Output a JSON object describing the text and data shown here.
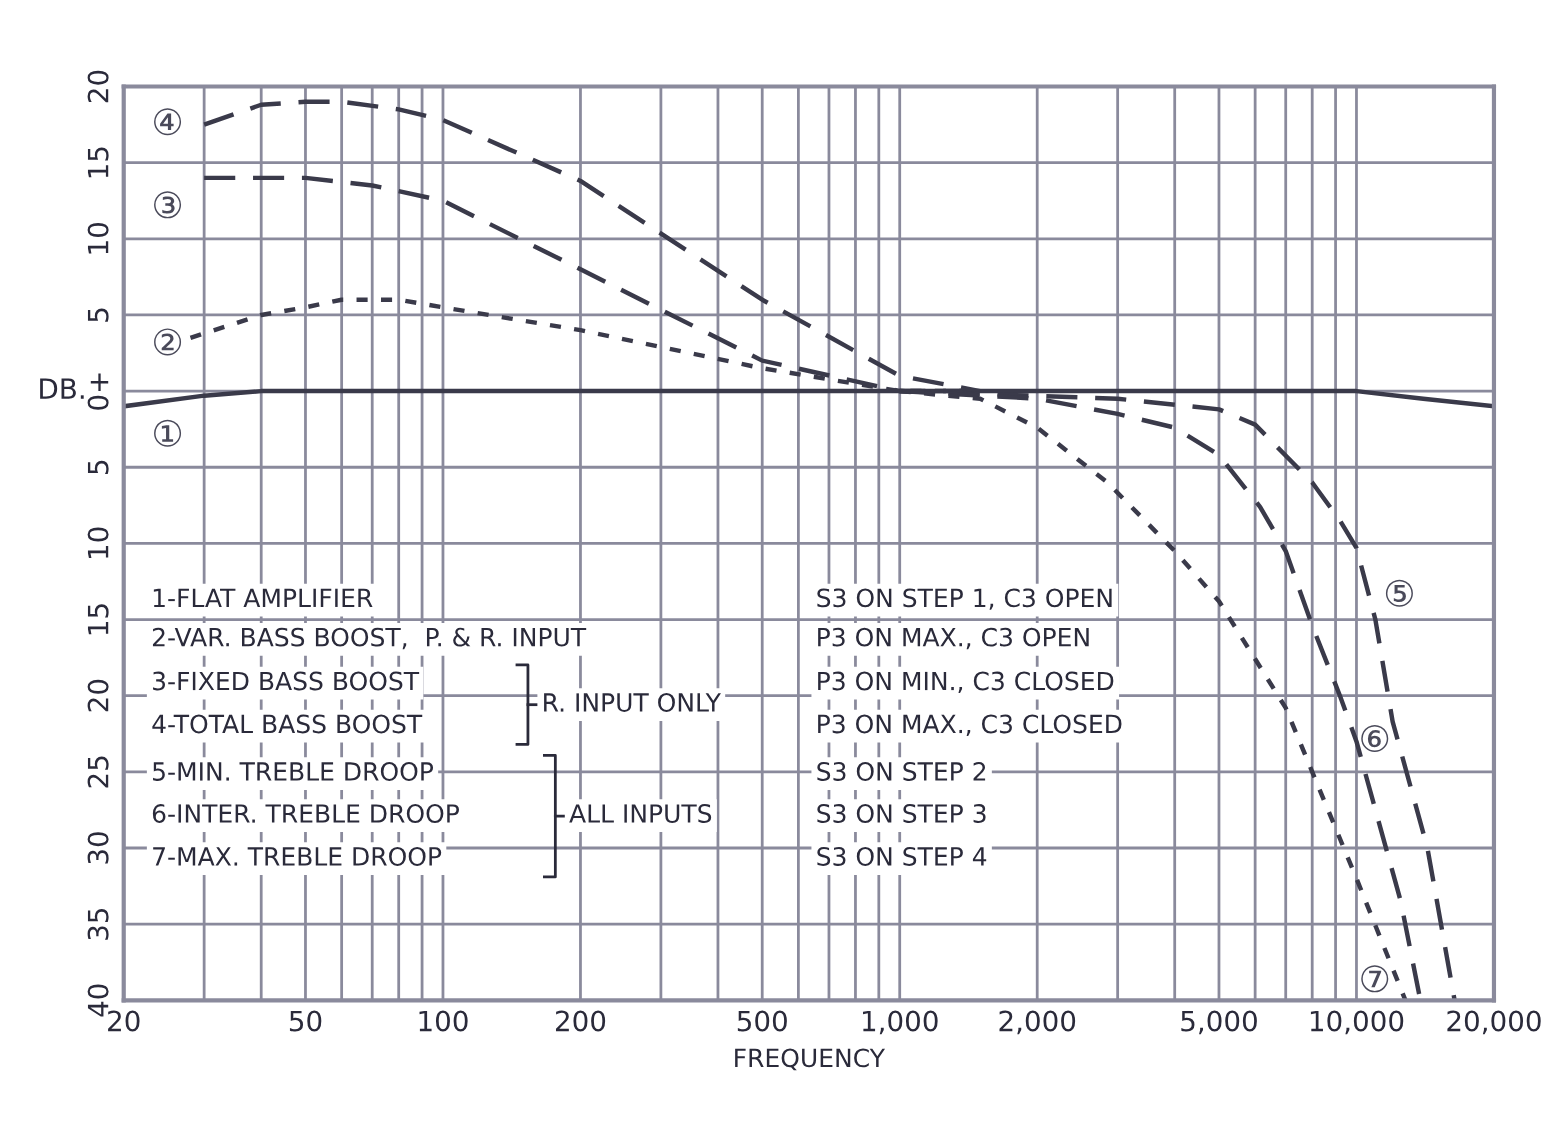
{
  "chart_data": {
    "type": "line",
    "xlabel": "FREQUENCY",
    "ylabel": "DB.",
    "log": "x",
    "grid": true,
    "marker": "none",
    "xlim": [
      20,
      20000
    ],
    "ylim": [
      -40,
      20
    ],
    "xticks": [
      20,
      {
        "value": 30,
        "label": null
      },
      {
        "value": 40,
        "label": null
      },
      50,
      {
        "value": 60,
        "label": null
      },
      {
        "value": 70,
        "label": null
      },
      {
        "value": 80,
        "label": null
      },
      {
        "value": 90,
        "label": null
      },
      100,
      200,
      {
        "value": 300,
        "label": null
      },
      {
        "value": 400,
        "label": null
      },
      500,
      {
        "value": 600,
        "label": null
      },
      {
        "value": 700,
        "label": null
      },
      {
        "value": 800,
        "label": null
      },
      {
        "value": 900,
        "label": null
      },
      {
        "value": 1000,
        "label": "1,000"
      },
      {
        "value": 2000,
        "label": "2,000"
      },
      {
        "value": 3000,
        "label": null
      },
      {
        "value": 4000,
        "label": null
      },
      {
        "value": 5000,
        "label": "5,000"
      },
      {
        "value": 6000,
        "label": null
      },
      {
        "value": 7000,
        "label": null
      },
      {
        "value": 8000,
        "label": null
      },
      {
        "value": 9000,
        "label": null
      },
      {
        "value": 10000,
        "label": "10,000"
      },
      {
        "value": 20000,
        "label": "20,000"
      }
    ],
    "yticks": [
      20,
      15,
      10,
      5,
      {
        "value": 0,
        "label": "0+"
      },
      {
        "value": -5,
        "label": "5"
      },
      {
        "value": -10,
        "label": "10"
      },
      {
        "value": -15,
        "label": "15"
      },
      {
        "value": -20,
        "label": "20"
      },
      {
        "value": -25,
        "label": "25"
      },
      {
        "value": -30,
        "label": "30"
      },
      {
        "value": -35,
        "label": "35"
      },
      {
        "value": -40,
        "label": "40"
      }
    ],
    "series": [
      {
        "color": "#3a3a4a",
        "line_style": "solid",
        "x": [
          20,
          30,
          40,
          100,
          1000,
          5000,
          10000,
          14000,
          20000
        ],
        "values": [
          -1,
          -0.3,
          0,
          0,
          0,
          0,
          0,
          -0.5,
          -1
        ]
      },
      {
        "color": "#3a3a4a",
        "line_style": "dotted",
        "x": [
          28,
          40,
          50,
          60,
          80,
          100,
          200,
          500,
          1000,
          1500
        ],
        "values": [
          3.5,
          5,
          5.5,
          6,
          6,
          5.5,
          4,
          1.5,
          0,
          0
        ]
      },
      {
        "color": "#3a3a4a",
        "line_style": "dashed",
        "x": [
          30,
          50,
          70,
          100,
          200,
          500,
          1000,
          1500
        ],
        "values": [
          14,
          14,
          13.5,
          12.5,
          8,
          2,
          0,
          0
        ]
      },
      {
        "color": "#3a3a4a",
        "line_style": "dashed",
        "x": [
          30,
          40,
          50,
          60,
          80,
          100,
          200,
          500,
          1000,
          1500
        ],
        "values": [
          17.5,
          18.8,
          19,
          19,
          18.5,
          17.8,
          13.8,
          6,
          1,
          0
        ]
      },
      {
        "color": "#3a3a4a",
        "line_style": "dashed",
        "x": [
          1000,
          3000,
          5000,
          6000,
          8000,
          9200,
          10000,
          11000,
          12000,
          14300,
          16400
        ],
        "values": [
          0,
          -0.5,
          -1.2,
          -2.2,
          -6,
          -8.5,
          -10.3,
          -15,
          -21.7,
          -30,
          -40
        ]
      },
      {
        "color": "#3a3a4a",
        "line_style": "dashed",
        "x": [
          1000,
          2000,
          3000,
          4000,
          5000,
          6150,
          7000,
          8000,
          9200,
          10000,
          12500,
          13800
        ],
        "values": [
          0,
          -0.5,
          -1.5,
          -2.4,
          -4.2,
          -7.6,
          -10.5,
          -15.4,
          -20,
          -23,
          -33.5,
          -40
        ]
      },
      {
        "color": "#3a3a4a",
        "line_style": "dotted",
        "x": [
          1000,
          1500,
          2000,
          2850,
          4000,
          5000,
          7000,
          8000,
          10000,
          12800
        ],
        "values": [
          0,
          -0.5,
          -2.4,
          -6,
          -10.5,
          -13.8,
          -20.8,
          -25,
          -32,
          -40
        ]
      }
    ],
    "annotations": [
      "①",
      "②",
      "③",
      "④",
      "⑤",
      "⑥",
      "⑦",
      "1-FLAT AMPLIFIER",
      "2-VAR. BASS BOOST,  P. & R. INPUT",
      "3-FIXED BASS BOOST",
      "4-TOTAL BASS BOOST",
      "5-MIN. TREBLE DROOP",
      "6-INTER. TREBLE DROOP",
      "7-MAX. TREBLE DROOP",
      "R. INPUT ONLY",
      "ALL INPUTS",
      "S3 ON STEP 1, C3 OPEN",
      "P3 ON MAX., C3 OPEN",
      "P3 ON MIN., C3 CLOSED",
      "P3 ON MAX., C3 CLOSED",
      "S3 ON STEP 2",
      "S3 ON STEP 3",
      "S3 ON STEP 4"
    ]
  }
}
